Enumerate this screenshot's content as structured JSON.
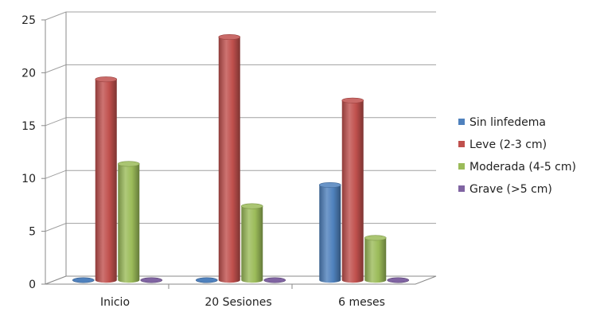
{
  "chart_data": {
    "type": "bar",
    "categories": [
      "Inicio",
      "20 Sesiones",
      "6 meses"
    ],
    "series": [
      {
        "name": "Sin linfedema",
        "values": [
          0,
          0,
          9
        ],
        "color": "#4F81BD"
      },
      {
        "name": "Leve (2-3 cm)",
        "values": [
          19,
          23,
          17
        ],
        "color": "#C0504D"
      },
      {
        "name": "Moderada (4-5 cm)",
        "values": [
          11,
          7,
          4
        ],
        "color": "#9BBB59"
      },
      {
        "name": "Grave (>5 cm)",
        "values": [
          0,
          0,
          0
        ],
        "color": "#8064A2"
      }
    ],
    "y_ticks": [
      "0",
      "5",
      "10",
      "15",
      "20",
      "25"
    ],
    "ylim": [
      0,
      25
    ],
    "grid": true,
    "legend_position": "right",
    "style": "3d-cylinder"
  }
}
